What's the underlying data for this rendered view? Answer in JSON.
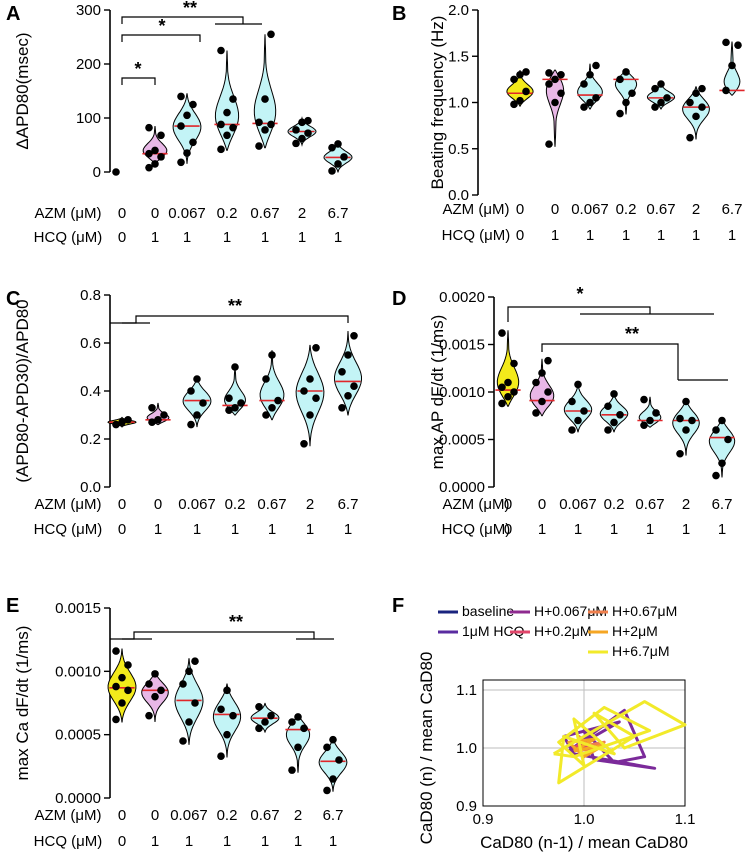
{
  "colors": {
    "yellow": "#f3ea1b",
    "pink": "#e8b7e6",
    "cyan": "#c3f4f6",
    "median": "#e0262a",
    "dot": "#000000"
  },
  "conditions": {
    "azm_label": "AZM (μM)",
    "hcq_label": "HCQ (μM)",
    "azm": [
      "0",
      "0",
      "0.067",
      "0.2",
      "0.67",
      "2",
      "6.7"
    ],
    "hcq": [
      "0",
      "1",
      "1",
      "1",
      "1",
      "1",
      "1"
    ]
  },
  "chart_data": [
    {
      "id": "A",
      "letter": "A",
      "type": "violin",
      "ylabel": "ΔAPD80(msec)",
      "ylim": [
        0,
        300
      ],
      "ytick_values": [
        0,
        100,
        200,
        300
      ],
      "yticks": [
        "0",
        "100",
        "200",
        "300"
      ],
      "categories": [
        "0/0",
        "0/1",
        "0.067/1",
        "0.2/1",
        "0.67/1",
        "2/1",
        "6.7/1"
      ],
      "fills": [
        "none",
        "pink",
        "cyan",
        "cyan",
        "cyan",
        "cyan",
        "cyan"
      ],
      "violin_ranges": [
        [
          0,
          0
        ],
        [
          15,
          85
        ],
        [
          15,
          145
        ],
        [
          40,
          225
        ],
        [
          45,
          255
        ],
        [
          50,
          100
        ],
        [
          0,
          55
        ]
      ],
      "medians": [
        0,
        34,
        85,
        88,
        90,
        75,
        27
      ],
      "points": [
        [
          0
        ],
        [
          8,
          15,
          28,
          34,
          40,
          68,
          82
        ],
        [
          18,
          35,
          55,
          85,
          105,
          125,
          140
        ],
        [
          42,
          68,
          82,
          88,
          110,
          135,
          225
        ],
        [
          48,
          78,
          88,
          92,
          135,
          255
        ],
        [
          53,
          62,
          72,
          78,
          92,
          95
        ],
        [
          2,
          15,
          28,
          45,
          52
        ]
      ],
      "annotations": [
        {
          "label": "*",
          "text": "*"
        },
        {
          "label": "*",
          "text": "*"
        },
        {
          "label": "**",
          "text": "**"
        }
      ]
    },
    {
      "id": "B",
      "letter": "B",
      "type": "violin",
      "ylabel": "Beating frequency (Hz)",
      "ylim": [
        0,
        2
      ],
      "ytick_values": [
        0,
        0.5,
        1,
        1.5,
        2
      ],
      "yticks": [
        "0.0",
        "0.5",
        "1.0",
        "1.5",
        "2.0"
      ],
      "categories": [
        "0/0",
        "0/1",
        "0.067/1",
        "0.2/1",
        "0.67/1",
        "2/1",
        "6.7/1"
      ],
      "fills": [
        "yellow",
        "pink",
        "cyan",
        "cyan",
        "cyan",
        "cyan",
        "cyan"
      ],
      "violin_ranges": [
        [
          0.96,
          1.35
        ],
        [
          0.52,
          1.35
        ],
        [
          0.93,
          1.42
        ],
        [
          0.87,
          1.35
        ],
        [
          0.93,
          1.22
        ],
        [
          0.6,
          1.17
        ],
        [
          1.08,
          1.66
        ]
      ],
      "medians": [
        1.1,
        1.25,
        1.08,
        1.25,
        1.05,
        0.95,
        1.13
      ],
      "points": [
        [
          0.98,
          1.02,
          1.12,
          1.25,
          1.3,
          1.33
        ],
        [
          0.55,
          1.0,
          1.1,
          1.2,
          1.25,
          1.3,
          1.32
        ],
        [
          0.95,
          1.0,
          1.05,
          1.2,
          1.3,
          1.4
        ],
        [
          0.88,
          1.0,
          1.1,
          1.25,
          1.33
        ],
        [
          0.95,
          1.0,
          1.05,
          1.15,
          1.2
        ],
        [
          0.62,
          0.85,
          0.95,
          1.0,
          1.1,
          1.15
        ],
        [
          1.13,
          1.4,
          1.62,
          1.65
        ]
      ],
      "annotations": []
    },
    {
      "id": "C",
      "letter": "C",
      "type": "violin",
      "ylabel": "(APD80-APD30)/APD80",
      "ylim": [
        0,
        0.8
      ],
      "ytick_values": [
        0,
        0.2,
        0.4,
        0.6,
        0.8
      ],
      "yticks": [
        "0.0",
        "0.2",
        "0.4",
        "0.6",
        "0.8"
      ],
      "categories": [
        "0/0",
        "0/1",
        "0.067/1",
        "0.2/1",
        "0.67/1",
        "2/1",
        "6.7/1"
      ],
      "fills": [
        "yellow",
        "pink",
        "cyan",
        "cyan",
        "cyan",
        "cyan",
        "cyan"
      ],
      "violin_ranges": [
        [
          0.25,
          0.29
        ],
        [
          0.26,
          0.35
        ],
        [
          0.25,
          0.46
        ],
        [
          0.3,
          0.5
        ],
        [
          0.28,
          0.57
        ],
        [
          0.17,
          0.59
        ],
        [
          0.3,
          0.65
        ]
      ],
      "medians": [
        0.27,
        0.28,
        0.36,
        0.34,
        0.36,
        0.4,
        0.44
      ],
      "points": [
        [
          0.26,
          0.27,
          0.28
        ],
        [
          0.27,
          0.28,
          0.3,
          0.33
        ],
        [
          0.26,
          0.3,
          0.35,
          0.4,
          0.45
        ],
        [
          0.32,
          0.33,
          0.35,
          0.37,
          0.5
        ],
        [
          0.3,
          0.33,
          0.36,
          0.45,
          0.55
        ],
        [
          0.18,
          0.3,
          0.37,
          0.4,
          0.45,
          0.58
        ],
        [
          0.33,
          0.38,
          0.42,
          0.48,
          0.55,
          0.63
        ]
      ],
      "annotations": [
        {
          "label": "**",
          "text": "**"
        }
      ]
    },
    {
      "id": "D",
      "letter": "D",
      "type": "violin",
      "ylabel": "max AP dF/dt (1/ms)",
      "ylim": [
        0,
        0.002
      ],
      "ytick_values": [
        0,
        0.0005,
        0.001,
        0.0015,
        0.002
      ],
      "yticks": [
        "0.0000",
        "0.0005",
        "0.0010",
        "0.0015",
        "0.0020"
      ],
      "categories": [
        "0/0",
        "0/1",
        "0.067/1",
        "0.2/1",
        "0.67/1",
        "2/1",
        "6.7/1"
      ],
      "fills": [
        "yellow",
        "pink",
        "cyan",
        "cyan",
        "cyan",
        "cyan",
        "cyan"
      ],
      "violin_ranges": [
        [
          0.00085,
          0.00165
        ],
        [
          0.00075,
          0.00135
        ],
        [
          0.00058,
          0.0011
        ],
        [
          0.00058,
          0.001
        ],
        [
          0.00063,
          0.00095
        ],
        [
          0.00033,
          0.00092
        ],
        [
          0.0001,
          0.00072
        ]
      ],
      "medians": [
        0.00102,
        0.00091,
        0.0008,
        0.00076,
        0.0007,
        0.0007,
        0.00052
      ],
      "points": [
        [
          0.00088,
          0.00095,
          0.001,
          0.00105,
          0.0011,
          0.0013,
          0.00162
        ],
        [
          0.00078,
          0.0009,
          0.001,
          0.0011,
          0.0012,
          0.00133
        ],
        [
          0.0006,
          0.0007,
          0.0008,
          0.0009,
          0.00108
        ],
        [
          0.0006,
          0.00068,
          0.00076,
          0.00085,
          0.00098
        ],
        [
          0.00065,
          0.0007,
          0.00078,
          0.00092
        ],
        [
          0.00035,
          0.0006,
          0.0007,
          0.00072,
          0.0009
        ],
        [
          0.00012,
          0.00025,
          0.0005,
          0.0006,
          0.0007
        ]
      ],
      "annotations": [
        {
          "label": "*",
          "text": "*"
        },
        {
          "label": "**",
          "text": "**"
        }
      ]
    },
    {
      "id": "E",
      "letter": "E",
      "type": "violin",
      "ylabel": "max Ca dF/dt (1/ms)",
      "ylim": [
        0,
        0.0015
      ],
      "ytick_values": [
        0,
        0.0005,
        0.001,
        0.0015
      ],
      "yticks": [
        "0.0000",
        "0.0005",
        "0.0010",
        "0.0015"
      ],
      "categories": [
        "0/0",
        "0/1",
        "0.067/1",
        "0.2/1",
        "0.67/1",
        "2/1",
        "6.7/1"
      ],
      "fills": [
        "yellow",
        "pink",
        "cyan",
        "cyan",
        "cyan",
        "cyan",
        "cyan"
      ],
      "violin_ranges": [
        [
          0.0006,
          0.00118
        ],
        [
          0.0006,
          0.001
        ],
        [
          0.00042,
          0.0011
        ],
        [
          0.00032,
          0.0009
        ],
        [
          0.00052,
          0.00075
        ],
        [
          0.0002,
          0.00066
        ],
        [
          5e-05,
          0.00048
        ]
      ],
      "medians": [
        0.00087,
        0.00085,
        0.00077,
        0.00066,
        0.00063,
        0.00054,
        0.00029
      ],
      "points": [
        [
          0.00062,
          0.00075,
          0.00085,
          0.00088,
          0.00095,
          0.00105,
          0.00116
        ],
        [
          0.00065,
          0.0008,
          0.00085,
          0.0009,
          0.00098
        ],
        [
          0.00045,
          0.0006,
          0.00075,
          0.0009,
          0.001,
          0.00108
        ],
        [
          0.00033,
          0.0005,
          0.00065,
          0.0007,
          0.00085
        ],
        [
          0.00055,
          0.0006,
          0.00065,
          0.00072
        ],
        [
          0.00022,
          0.0004,
          0.00055,
          0.0006,
          0.00064
        ],
        [
          6e-05,
          0.00015,
          0.0003,
          0.0004,
          0.00046
        ]
      ],
      "annotations": [
        {
          "label": "**",
          "text": "**"
        }
      ]
    },
    {
      "id": "F",
      "letter": "F",
      "type": "line",
      "xlabel": "CaD80 (n-1) / mean CaD80",
      "ylabel": "CaD80 (n) / mean CaD80",
      "xlim": [
        0.9,
        1.1
      ],
      "ylim": [
        0.9,
        1.1
      ],
      "xtick_values": [
        0.9,
        1.0,
        1.1
      ],
      "xticks": [
        "0.9",
        "1.0",
        "1.1"
      ],
      "ytick_values": [
        0.9,
        1.0,
        1.1
      ],
      "yticks": [
        "0.9",
        "1.0",
        "1.1"
      ],
      "grid": true,
      "legend": [
        {
          "name": "baseline",
          "color": "#1a237e"
        },
        {
          "name": "H+0.067μM",
          "color": "#8e2a8f"
        },
        {
          "name": "H+0.67μM",
          "color": "#ef7f4d"
        },
        {
          "name": "1μM HCQ",
          "color": "#5a2ca0"
        },
        {
          "name": "H+0.2μM",
          "color": "#e0456a"
        },
        {
          "name": "H+2μM",
          "color": "#f5a623"
        },
        {
          "name": "H+6.7μM",
          "color": "#f2ea2a"
        }
      ],
      "series": [
        {
          "name": "H+0.067μM",
          "color": "#7b2a9a",
          "x": [
            0.985,
            1.04,
            1.06,
            1.03,
            1.0,
            1.01,
            1.07,
            0.99,
            0.98,
            1.035,
            0.985
          ],
          "y": [
            0.995,
            1.065,
            0.985,
            0.975,
            1.03,
            0.98,
            0.965,
            0.99,
            1.02,
            1.045,
            0.995
          ]
        },
        {
          "name": "H+0.67μM",
          "color": "#ef7f4d",
          "x": [
            0.99,
            1.02,
            1.005,
            0.995,
            1.01,
            0.99
          ],
          "y": [
            1.0,
            1.01,
            0.99,
            1.02,
            0.995,
            1.0
          ]
        },
        {
          "name": "H+0.2μM",
          "color": "#e0456a",
          "x": [
            0.995,
            1.01,
            1.0,
            0.99,
            0.995
          ],
          "y": [
            1.005,
            1.0,
            0.99,
            1.0,
            1.005
          ]
        },
        {
          "name": "H+2μM",
          "color": "#f5a623",
          "x": [
            0.99,
            1.02,
            1.0,
            0.985,
            1.01,
            0.99
          ],
          "y": [
            0.995,
            1.005,
            0.985,
            1.01,
            1.015,
            0.995
          ]
        },
        {
          "name": "H+6.7μM",
          "color": "#f2ea2a",
          "x": [
            0.97,
            1.06,
            1.1,
            1.04,
            1.01,
            1.05,
            0.975,
            0.98,
            1.03,
            0.99,
            1.0,
            0.975,
            1.02,
            1.065,
            0.99,
            0.97
          ],
          "y": [
            0.99,
            1.08,
            1.04,
            1.0,
            1.06,
            1.02,
            0.94,
            1.02,
            0.99,
            1.05,
            0.97,
            1.01,
            1.07,
            1.03,
            0.985,
            0.99
          ]
        }
      ]
    }
  ]
}
